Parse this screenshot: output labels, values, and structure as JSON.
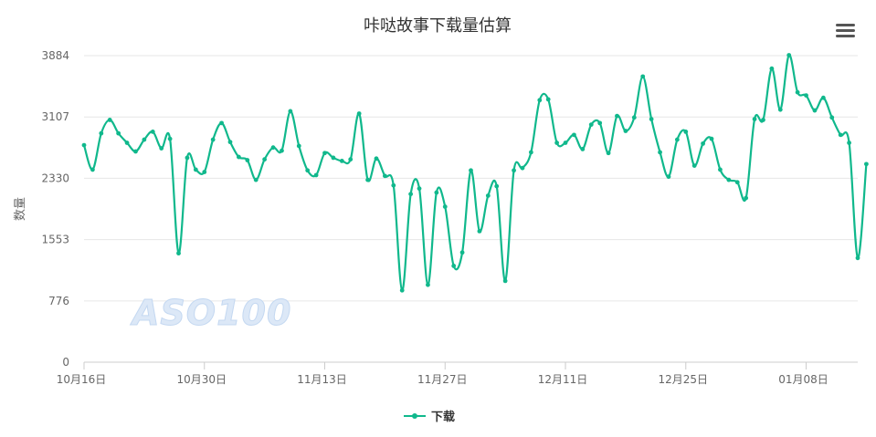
{
  "menu": {
    "icon": "hamburger-menu-icon"
  },
  "watermark": "ASO100",
  "chart_data": {
    "type": "line",
    "title": "咔哒故事下载量估算",
    "ylabel": "数量",
    "xlabel": "",
    "ylim": [
      0,
      3884
    ],
    "yticks": [
      0,
      776,
      1553,
      2330,
      3107,
      3884
    ],
    "x_start": "2023-10-16",
    "x_end": "2024-01-14",
    "xtick_dates": [
      "2023-10-16",
      "2023-10-30",
      "2023-11-13",
      "2023-11-27",
      "2023-12-11",
      "2023-12-25",
      "2024-01-08"
    ],
    "xticks": [
      "10月16日",
      "10月30日",
      "11月13日",
      "11月27日",
      "12月11日",
      "12月25日",
      "01月08日"
    ],
    "grid": true,
    "legend": "bottom-center",
    "color": "#10b88c",
    "series": [
      {
        "name": "下载",
        "values": [
          2750,
          2440,
          2900,
          3070,
          2900,
          2780,
          2670,
          2820,
          2920,
          2710,
          2830,
          1380,
          2590,
          2440,
          2410,
          2820,
          3030,
          2790,
          2600,
          2560,
          2310,
          2570,
          2720,
          2680,
          3180,
          2740,
          2430,
          2370,
          2650,
          2590,
          2550,
          2570,
          3150,
          2310,
          2580,
          2360,
          2240,
          910,
          2130,
          2200,
          980,
          2150,
          1970,
          1220,
          1390,
          2430,
          1660,
          2110,
          2230,
          1030,
          2430,
          2460,
          2660,
          3320,
          3330,
          2780,
          2780,
          2880,
          2700,
          3010,
          3030,
          2650,
          3120,
          2930,
          3100,
          3620,
          3080,
          2660,
          2350,
          2820,
          2920,
          2490,
          2770,
          2830,
          2440,
          2310,
          2280,
          2080,
          3080,
          3070,
          3720,
          3200,
          3890,
          3420,
          3380,
          3190,
          3350,
          3100,
          2880,
          2780,
          1320,
          2510
        ]
      }
    ]
  }
}
